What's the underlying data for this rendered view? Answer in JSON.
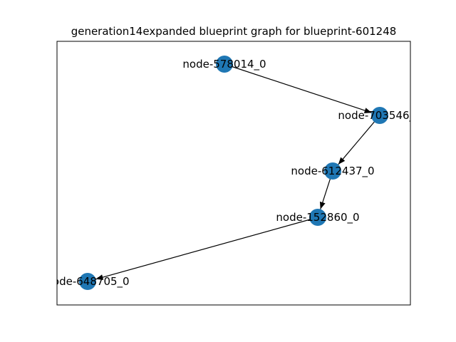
{
  "title": "generation14expanded blueprint graph for blueprint-601248",
  "node_color": "#1f77b4",
  "edge_color": "#000000",
  "nodes": [
    {
      "id": "n1",
      "label": "node-578014_0"
    },
    {
      "id": "n2",
      "label": "node-703546_0"
    },
    {
      "id": "n3",
      "label": "node-612437_0"
    },
    {
      "id": "n4",
      "label": "node-152860_0"
    },
    {
      "id": "n5",
      "label": "node-648705_0"
    }
  ],
  "edges": [
    {
      "from": "n1",
      "to": "n2"
    },
    {
      "from": "n2",
      "to": "n3"
    },
    {
      "from": "n3",
      "to": "n4"
    },
    {
      "from": "n4",
      "to": "n5"
    }
  ]
}
